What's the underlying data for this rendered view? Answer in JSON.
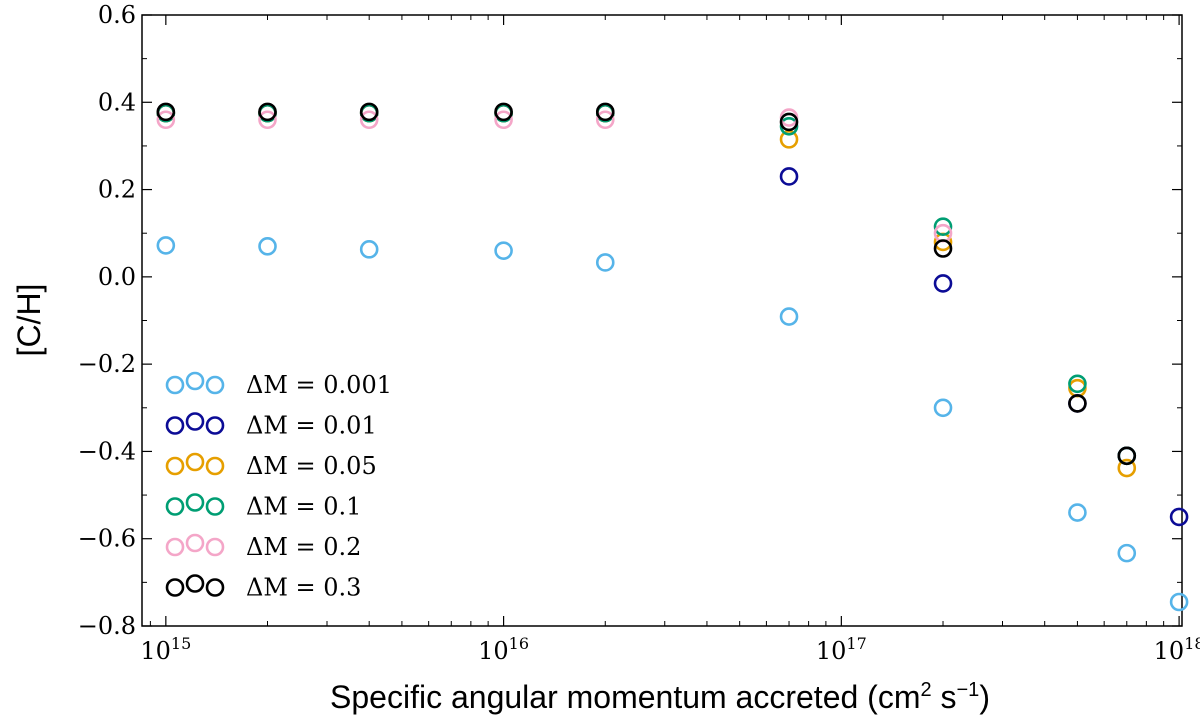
{
  "chart_data": {
    "type": "scatter",
    "xlabel": "Specific angular momentum accreted (cm",
    "xlabel_units": [
      "2",
      " s",
      "−1",
      ")"
    ],
    "ylabel": "[C/H]",
    "x_scale": "log",
    "xlim": [
      850000000000000.0,
      1.02e+18
    ],
    "ylim": [
      -0.8,
      0.6
    ],
    "y_ticks": [
      {
        "value": 0.6,
        "label": "0.6"
      },
      {
        "value": 0.4,
        "label": "0.4"
      },
      {
        "value": 0.2,
        "label": "0.2"
      },
      {
        "value": 0.0,
        "label": "0.0"
      },
      {
        "value": -0.2,
        "label": "−0.2"
      },
      {
        "value": -0.4,
        "label": "−0.4"
      },
      {
        "value": -0.6,
        "label": "−0.6"
      },
      {
        "value": -0.8,
        "label": "−0.8"
      }
    ],
    "x_ticks": [
      {
        "value": 1000000000000000.0,
        "base": "10",
        "exp": "15"
      },
      {
        "value": 1e+16,
        "base": "10",
        "exp": "16"
      },
      {
        "value": 1e+17,
        "base": "10",
        "exp": "17"
      },
      {
        "value": 1e+18,
        "base": "10",
        "exp": "18"
      }
    ],
    "grid": false,
    "legend_position": "lower-left",
    "series": [
      {
        "name": "ΔM = 0.001",
        "color": "#56B4E9",
        "x": [
          1000000000000000.0,
          2000000000000000.0,
          4000000000000000.0,
          1e+16,
          2e+16,
          7e+16,
          2e+17,
          5e+17,
          7e+17,
          1e+18
        ],
        "y": [
          0.072,
          0.07,
          0.063,
          0.06,
          0.033,
          -0.091,
          -0.3,
          -0.54,
          -0.633,
          -0.745
        ]
      },
      {
        "name": "ΔM = 0.01",
        "color": "#0C0C96",
        "x": [
          1000000000000000.0,
          2000000000000000.0,
          4000000000000000.0,
          1e+16,
          2e+16,
          7e+16,
          2e+17,
          5e+17,
          7e+17,
          1e+18
        ],
        "y": [
          0.375,
          0.375,
          0.375,
          0.375,
          0.375,
          0.23,
          -0.015,
          -0.29,
          -0.41,
          -0.55
        ]
      },
      {
        "name": "ΔM = 0.05",
        "color": "#E69F00",
        "x": [
          1000000000000000.0,
          2000000000000000.0,
          4000000000000000.0,
          1e+16,
          2e+16,
          7e+16,
          2e+17,
          5e+17,
          7e+17
        ],
        "y": [
          0.375,
          0.375,
          0.375,
          0.375,
          0.375,
          0.315,
          0.08,
          -0.255,
          -0.438
        ]
      },
      {
        "name": "ΔM = 0.1",
        "color": "#009E73",
        "x": [
          1000000000000000.0,
          2000000000000000.0,
          4000000000000000.0,
          1e+16,
          2e+16,
          7e+16,
          2e+17,
          5e+17,
          7e+17
        ],
        "y": [
          0.375,
          0.375,
          0.375,
          0.375,
          0.375,
          0.345,
          0.115,
          -0.245,
          -0.41
        ]
      },
      {
        "name": "ΔM = 0.2",
        "color": "#F4A6C8",
        "x": [
          1000000000000000.0,
          2000000000000000.0,
          4000000000000000.0,
          1e+16,
          2e+16,
          7e+16,
          2e+17
        ],
        "y": [
          0.36,
          0.36,
          0.36,
          0.36,
          0.36,
          0.365,
          0.1
        ]
      },
      {
        "name": "ΔM = 0.3",
        "color": "#000000",
        "x": [
          1000000000000000.0,
          2000000000000000.0,
          4000000000000000.0,
          1e+16,
          2e+16,
          7e+16,
          2e+17,
          5e+17,
          7e+17
        ],
        "y": [
          0.378,
          0.378,
          0.378,
          0.378,
          0.378,
          0.355,
          0.065,
          -0.29,
          -0.41
        ]
      }
    ]
  }
}
